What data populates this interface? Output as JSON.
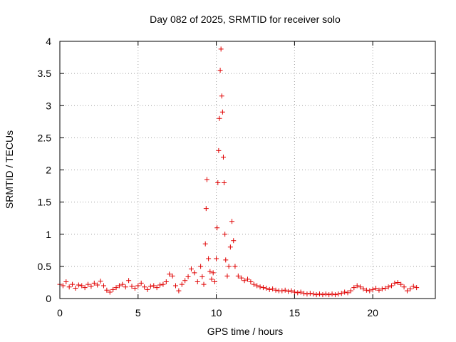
{
  "chart_data": {
    "type": "scatter",
    "title": "Day 082 of 2025, SRMTID for receiver solo",
    "xlabel": "GPS time / hours",
    "ylabel": "SRMTID / TECUs",
    "xlim": [
      0,
      24
    ],
    "ylim": [
      0,
      4
    ],
    "xticks": [
      0,
      5,
      10,
      15,
      20
    ],
    "xtick_labels": [
      "0",
      "5",
      "10",
      "15",
      "20"
    ],
    "yticks": [
      0,
      0.5,
      1,
      1.5,
      2,
      2.5,
      3,
      3.5,
      4
    ],
    "ytick_labels": [
      "0",
      "0.5",
      "1",
      "1.5",
      "2",
      "2.5",
      "3",
      "3.5",
      "4"
    ],
    "grid": true,
    "marker": "+",
    "series": [
      {
        "name": "SRMTID",
        "color": "#e00000",
        "points": [
          [
            0.0,
            0.22
          ],
          [
            0.2,
            0.2
          ],
          [
            0.4,
            0.26
          ],
          [
            0.6,
            0.18
          ],
          [
            0.8,
            0.22
          ],
          [
            1.0,
            0.16
          ],
          [
            1.2,
            0.21
          ],
          [
            1.4,
            0.2
          ],
          [
            1.6,
            0.17
          ],
          [
            1.8,
            0.22
          ],
          [
            2.0,
            0.19
          ],
          [
            2.2,
            0.24
          ],
          [
            2.4,
            0.21
          ],
          [
            2.6,
            0.27
          ],
          [
            2.8,
            0.2
          ],
          [
            3.0,
            0.13
          ],
          [
            3.2,
            0.1
          ],
          [
            3.4,
            0.14
          ],
          [
            3.6,
            0.17
          ],
          [
            3.8,
            0.2
          ],
          [
            4.0,
            0.22
          ],
          [
            4.2,
            0.18
          ],
          [
            4.4,
            0.28
          ],
          [
            4.6,
            0.19
          ],
          [
            4.8,
            0.16
          ],
          [
            5.0,
            0.2
          ],
          [
            5.2,
            0.24
          ],
          [
            5.4,
            0.18
          ],
          [
            5.6,
            0.14
          ],
          [
            5.8,
            0.19
          ],
          [
            6.0,
            0.2
          ],
          [
            6.2,
            0.17
          ],
          [
            6.4,
            0.21
          ],
          [
            6.6,
            0.22
          ],
          [
            6.8,
            0.26
          ],
          [
            7.0,
            0.38
          ],
          [
            7.2,
            0.35
          ],
          [
            7.4,
            0.2
          ],
          [
            7.6,
            0.12
          ],
          [
            7.8,
            0.22
          ],
          [
            8.0,
            0.28
          ],
          [
            8.2,
            0.34
          ],
          [
            8.4,
            0.46
          ],
          [
            8.6,
            0.4
          ],
          [
            8.8,
            0.26
          ],
          [
            9.0,
            0.5
          ],
          [
            9.1,
            0.34
          ],
          [
            9.2,
            0.22
          ],
          [
            9.3,
            0.85
          ],
          [
            9.35,
            1.4
          ],
          [
            9.4,
            1.85
          ],
          [
            9.5,
            0.62
          ],
          [
            9.6,
            0.42
          ],
          [
            9.7,
            0.3
          ],
          [
            9.8,
            0.4
          ],
          [
            9.9,
            0.26
          ],
          [
            10.0,
            0.62
          ],
          [
            10.05,
            1.1
          ],
          [
            10.1,
            1.8
          ],
          [
            10.15,
            2.3
          ],
          [
            10.2,
            2.8
          ],
          [
            10.25,
            3.55
          ],
          [
            10.3,
            3.88
          ],
          [
            10.35,
            3.15
          ],
          [
            10.4,
            2.9
          ],
          [
            10.45,
            2.2
          ],
          [
            10.5,
            1.8
          ],
          [
            10.55,
            1.0
          ],
          [
            10.6,
            0.6
          ],
          [
            10.7,
            0.35
          ],
          [
            10.8,
            0.5
          ],
          [
            10.9,
            0.8
          ],
          [
            11.0,
            1.2
          ],
          [
            11.1,
            0.9
          ],
          [
            11.2,
            0.5
          ],
          [
            11.4,
            0.35
          ],
          [
            11.6,
            0.32
          ],
          [
            11.8,
            0.28
          ],
          [
            12.0,
            0.3
          ],
          [
            12.2,
            0.26
          ],
          [
            12.4,
            0.22
          ],
          [
            12.6,
            0.2
          ],
          [
            12.8,
            0.18
          ],
          [
            13.0,
            0.17
          ],
          [
            13.2,
            0.16
          ],
          [
            13.4,
            0.14
          ],
          [
            13.6,
            0.15
          ],
          [
            13.8,
            0.13
          ],
          [
            14.0,
            0.12
          ],
          [
            14.2,
            0.12
          ],
          [
            14.4,
            0.13
          ],
          [
            14.6,
            0.11
          ],
          [
            14.8,
            0.12
          ],
          [
            15.0,
            0.1
          ],
          [
            15.2,
            0.09
          ],
          [
            15.4,
            0.1
          ],
          [
            15.6,
            0.08
          ],
          [
            15.8,
            0.07
          ],
          [
            16.0,
            0.08
          ],
          [
            16.2,
            0.07
          ],
          [
            16.4,
            0.06
          ],
          [
            16.6,
            0.07
          ],
          [
            16.8,
            0.06
          ],
          [
            17.0,
            0.07
          ],
          [
            17.2,
            0.06
          ],
          [
            17.4,
            0.07
          ],
          [
            17.6,
            0.06
          ],
          [
            17.8,
            0.07
          ],
          [
            18.0,
            0.08
          ],
          [
            18.2,
            0.1
          ],
          [
            18.4,
            0.09
          ],
          [
            18.6,
            0.12
          ],
          [
            18.8,
            0.17
          ],
          [
            19.0,
            0.2
          ],
          [
            19.2,
            0.18
          ],
          [
            19.4,
            0.15
          ],
          [
            19.6,
            0.13
          ],
          [
            19.8,
            0.12
          ],
          [
            20.0,
            0.14
          ],
          [
            20.2,
            0.16
          ],
          [
            20.4,
            0.13
          ],
          [
            20.6,
            0.15
          ],
          [
            20.8,
            0.16
          ],
          [
            21.0,
            0.18
          ],
          [
            21.2,
            0.2
          ],
          [
            21.4,
            0.24
          ],
          [
            21.6,
            0.25
          ],
          [
            21.8,
            0.22
          ],
          [
            22.0,
            0.18
          ],
          [
            22.2,
            0.12
          ],
          [
            22.4,
            0.15
          ],
          [
            22.6,
            0.19
          ],
          [
            22.8,
            0.17
          ]
        ]
      }
    ]
  }
}
